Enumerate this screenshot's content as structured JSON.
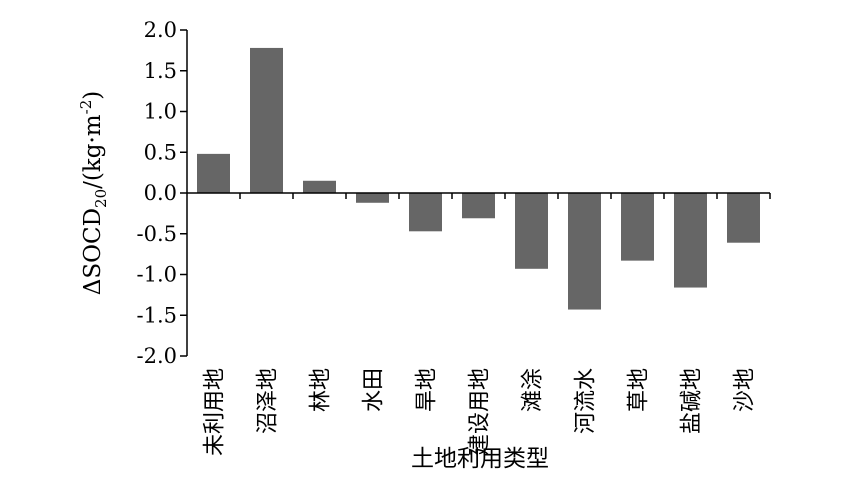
{
  "chart_data": {
    "type": "bar",
    "categories": [
      "未利用地",
      "沼泽地",
      "林地",
      "水田",
      "旱地",
      "建设用地",
      "滩涂",
      "河流水",
      "草地",
      "盐碱地",
      "沙地"
    ],
    "values": [
      0.48,
      1.78,
      0.15,
      -0.12,
      -0.47,
      -0.31,
      -0.93,
      -1.43,
      -0.83,
      -1.16,
      -0.61
    ],
    "title": "",
    "xlabel": "土地利用类型",
    "ylabel": "ΔSOCD20/(kg·m-2)",
    "ylabel_parts": [
      "ΔSOCD",
      "20",
      "/(kg·m",
      "-2",
      ")"
    ],
    "ylim": [
      -2.0,
      2.0
    ],
    "yticks": [
      "2.0",
      "1.5",
      "1.0",
      "0.5",
      "0.0",
      "-0.5",
      "-1.0",
      "-1.5",
      "-2.0"
    ],
    "ytick_values": [
      2.0,
      1.5,
      1.0,
      0.5,
      0.0,
      -0.5,
      -1.0,
      -1.5,
      -2.0
    ],
    "grid": false,
    "legend": "none",
    "bar_color": "#666666",
    "axis_color": "#000000"
  }
}
